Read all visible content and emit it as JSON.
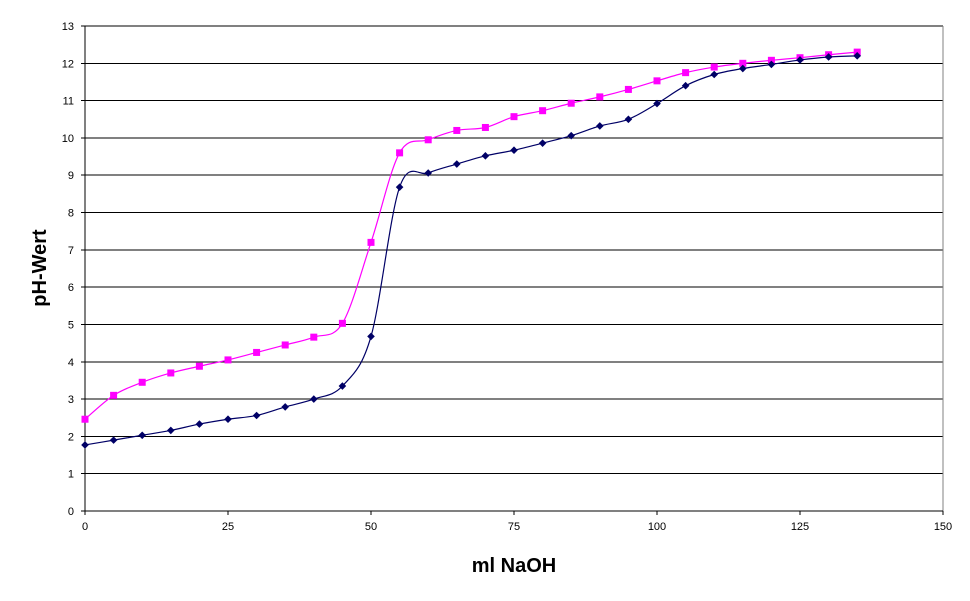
{
  "chart_data": {
    "type": "line",
    "xlabel": "ml NaOH",
    "ylabel": "pH-Wert",
    "xlim": [
      0,
      150
    ],
    "ylim": [
      0,
      13
    ],
    "xticks": [
      0,
      25,
      50,
      75,
      100,
      125,
      150
    ],
    "yticks": [
      0,
      1,
      2,
      3,
      4,
      5,
      6,
      7,
      8,
      9,
      10,
      11,
      12,
      13
    ],
    "grid": "horizontal",
    "legend": "none",
    "series": [
      {
        "color": "#000066",
        "marker": "diamond",
        "x": [
          0,
          5,
          10,
          15,
          20,
          25,
          30,
          35,
          40,
          45,
          50,
          55,
          60,
          65,
          70,
          75,
          80,
          85,
          90,
          95,
          100,
          105,
          110,
          115,
          120,
          125,
          130,
          135
        ],
        "y": [
          1.77,
          1.9,
          2.03,
          2.16,
          2.33,
          2.46,
          2.56,
          2.79,
          3.0,
          3.35,
          4.68,
          8.68,
          9.06,
          9.3,
          9.52,
          9.67,
          9.86,
          10.06,
          10.32,
          10.5,
          10.92,
          11.4,
          11.7,
          11.86,
          11.97,
          12.09,
          12.17,
          12.2
        ]
      },
      {
        "color": "#ff00ff",
        "marker": "square",
        "x": [
          0,
          5,
          10,
          15,
          20,
          25,
          30,
          35,
          40,
          45,
          50,
          55,
          60,
          65,
          70,
          75,
          80,
          85,
          90,
          95,
          100,
          105,
          110,
          115,
          120,
          125,
          130,
          135
        ],
        "y": [
          2.46,
          3.1,
          3.45,
          3.7,
          3.88,
          4.05,
          4.25,
          4.45,
          4.66,
          5.03,
          7.2,
          9.6,
          9.95,
          10.2,
          10.28,
          10.57,
          10.73,
          10.93,
          11.1,
          11.3,
          11.53,
          11.75,
          11.9,
          12.0,
          12.08,
          12.15,
          12.23,
          12.3
        ]
      }
    ]
  }
}
